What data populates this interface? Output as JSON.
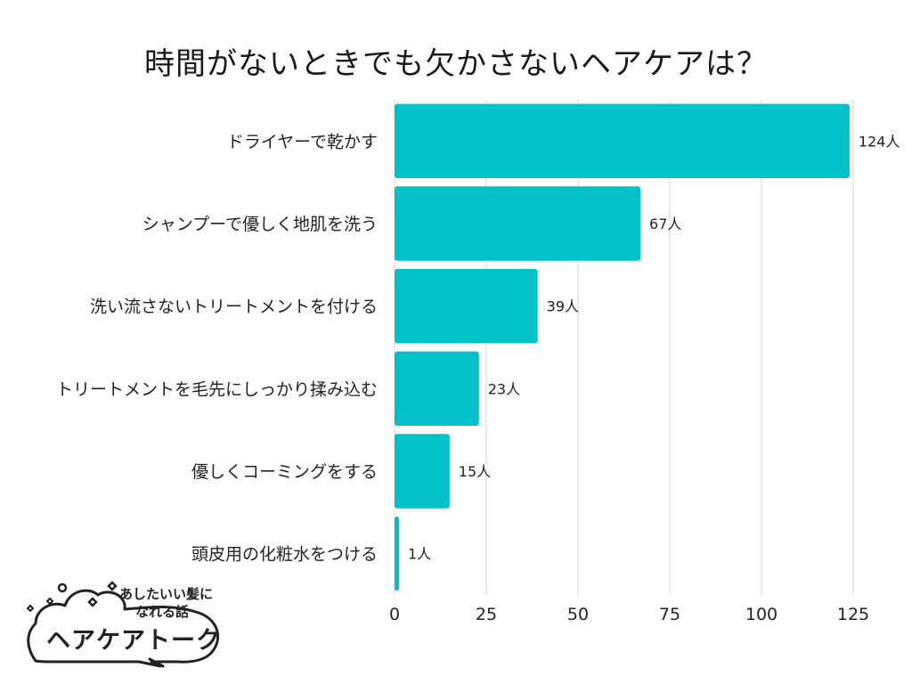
{
  "chart_data": {
    "type": "bar",
    "orientation": "horizontal",
    "title": "時間がないときでも欠かさないヘアケアは？",
    "categories": [
      "ドライヤーで乾かす",
      "シャンプーで優しく地肌を洗う",
      "洗い流さないトリートメントを付ける",
      "トリートメントを毛先にしっかり揉み込む",
      "優しくコーミングをする",
      "頭皮用の化粧水をつける"
    ],
    "values": [
      124,
      67,
      39,
      23,
      15,
      1
    ],
    "value_labels": [
      "124人",
      "67人",
      "39人",
      "23人",
      "15人",
      "1人"
    ],
    "xlim": [
      0,
      125
    ],
    "ticks": [
      0,
      25,
      50,
      75,
      100,
      125
    ],
    "tick_labels": [
      "0",
      "25",
      "50",
      "75",
      "100",
      "125"
    ],
    "grid": "vertical",
    "bar_color": "#00c0c8"
  },
  "logo": {
    "tagline_line1": "あしたいい髪に",
    "tagline_line2": "なれる話",
    "name": "ヘアケアトーク"
  }
}
